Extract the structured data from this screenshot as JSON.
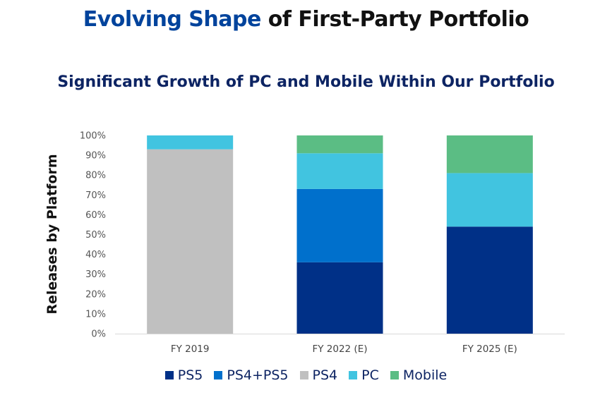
{
  "chart_data": {
    "type": "bar",
    "stacked": true,
    "title_highlight": "Evolving Shape",
    "title_rest": " of First-Party Portfolio",
    "subtitle": "Significant Growth of PC and Mobile Within Our Portfolio",
    "xlabel": "",
    "ylabel": "Releases by Platform",
    "ylim": [
      0,
      100
    ],
    "yticks": [
      "0%",
      "10%",
      "20%",
      "30%",
      "40%",
      "50%",
      "60%",
      "70%",
      "80%",
      "90%",
      "100%"
    ],
    "categories": [
      "FY 2019",
      "FY 2022 (E)",
      "FY 2025 (E)"
    ],
    "series": [
      {
        "name": "PS5",
        "color": "#003087",
        "values": [
          0,
          36,
          54
        ]
      },
      {
        "name": "PS4+PS5",
        "color": "#0070cc",
        "values": [
          0,
          37,
          0
        ]
      },
      {
        "name": "PS4",
        "color": "#c0c0c0",
        "values": [
          93,
          0,
          0
        ]
      },
      {
        "name": "PC",
        "color": "#41c4e0",
        "values": [
          7,
          18,
          27
        ]
      },
      {
        "name": "Mobile",
        "color": "#5bbd84",
        "values": [
          0,
          9,
          19
        ]
      }
    ],
    "legend_position": "bottom",
    "grid": false
  }
}
